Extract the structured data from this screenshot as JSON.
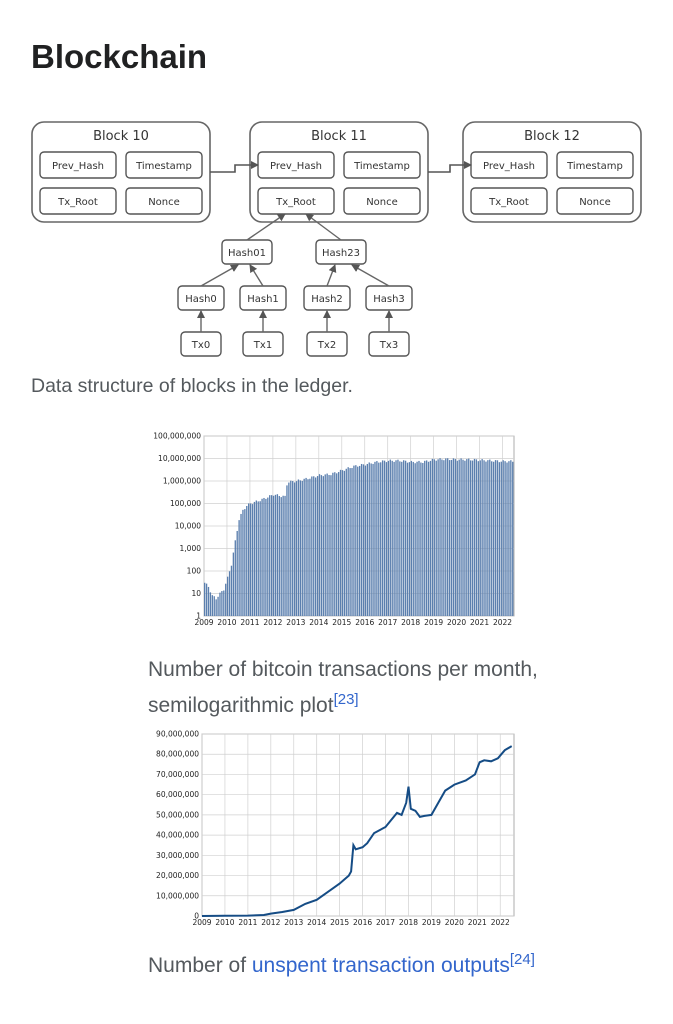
{
  "page": {
    "heading": "Blockchain"
  },
  "diagram": {
    "blocks": [
      {
        "title": "Block 10",
        "fields": [
          "Prev_Hash",
          "Timestamp",
          "Tx_Root",
          "Nonce"
        ]
      },
      {
        "title": "Block 11",
        "fields": [
          "Prev_Hash",
          "Timestamp",
          "Tx_Root",
          "Nonce"
        ]
      },
      {
        "title": "Block 12",
        "fields": [
          "Prev_Hash",
          "Timestamp",
          "Tx_Root",
          "Nonce"
        ]
      }
    ],
    "hash_pairs": [
      "Hash01",
      "Hash23"
    ],
    "hashes": [
      "Hash0",
      "Hash1",
      "Hash2",
      "Hash3"
    ],
    "transactions": [
      "Tx0",
      "Tx1",
      "Tx2",
      "Tx3"
    ],
    "caption": "Data structure of blocks in the ledger."
  },
  "figures": {
    "transactions": {
      "caption": "Number of bitcoin transactions per month, semilogarithmic plot",
      "ref": "[23]"
    },
    "utxo": {
      "caption_prefix": "Number of ",
      "caption_link": "unspent transaction outputs",
      "ref": "[24]"
    }
  },
  "chart_data": [
    {
      "type": "bar",
      "title": "",
      "xlabel": "",
      "ylabel": "",
      "yscale": "log",
      "ylim": [
        1,
        100000000
      ],
      "y_ticks": [
        "1",
        "10",
        "100",
        "1,000",
        "10,000",
        "100,000",
        "1,000,000",
        "10,000,000",
        "100,000,000"
      ],
      "x_ticks": [
        "2009",
        "2010",
        "2011",
        "2012",
        "2013",
        "2014",
        "2015",
        "2016",
        "2017",
        "2018",
        "2019",
        "2020",
        "2021",
        "2022"
      ],
      "grid": true,
      "color": "#5b7fae",
      "series": [
        {
          "x": [
            2009.0,
            2009.17,
            2009.33,
            2009.5,
            2009.67,
            2009.83,
            2010.0,
            2010.17,
            2010.33,
            2010.5,
            2010.67,
            2010.83,
            2011.0,
            2011.5,
            2012.0,
            2012.5,
            2012.6,
            2013.0,
            2013.5,
            2014.0,
            2014.5,
            2015.0,
            2015.5,
            2016.0,
            2016.5,
            2017.0,
            2017.5,
            2018.0,
            2018.5,
            2019.0,
            2019.5,
            2020.0,
            2020.5,
            2021.0,
            2021.5,
            2022.0,
            2022.5
          ],
          "values": [
            30,
            20,
            8,
            6,
            10,
            15,
            50,
            200,
            2000,
            20000,
            50000,
            80000,
            100000,
            150000,
            250000,
            200000,
            900000,
            1000000,
            1300000,
            1800000,
            2000000,
            3000000,
            4500000,
            5500000,
            7000000,
            8000000,
            8000000,
            7000000,
            7000000,
            9000000,
            9500000,
            9000000,
            9000000,
            8500000,
            8000000,
            7500000,
            7500000
          ]
        }
      ]
    },
    {
      "type": "line",
      "title": "",
      "xlabel": "",
      "ylabel": "",
      "ylim": [
        0,
        90000000
      ],
      "y_ticks": [
        "0",
        "10,000,000",
        "20,000,000",
        "30,000,000",
        "40,000,000",
        "50,000,000",
        "60,000,000",
        "70,000,000",
        "80,000,000",
        "90,000,000"
      ],
      "x_ticks": [
        "2009",
        "2010",
        "2011",
        "2012",
        "2013",
        "2014",
        "2015",
        "2016",
        "2017",
        "2018",
        "2019",
        "2020",
        "2021",
        "2022"
      ],
      "grid": true,
      "color": "#154c85",
      "series": [
        {
          "x": [
            2009.0,
            2010.0,
            2011.0,
            2011.7,
            2012.0,
            2012.5,
            2013.0,
            2013.5,
            2014.0,
            2014.5,
            2015.0,
            2015.4,
            2015.5,
            2015.6,
            2015.7,
            2016.0,
            2016.2,
            2016.5,
            2017.0,
            2017.5,
            2017.7,
            2017.9,
            2018.0,
            2018.1,
            2018.3,
            2018.5,
            2018.7,
            2019.0,
            2019.3,
            2019.6,
            2020.0,
            2020.5,
            2020.9,
            2021.1,
            2021.3,
            2021.6,
            2021.9,
            2022.2,
            2022.5
          ],
          "values": [
            0,
            100000,
            200000,
            500000,
            1200000,
            2000000,
            3000000,
            6000000,
            8000000,
            12000000,
            16000000,
            20000000,
            22000000,
            35000000,
            33000000,
            34000000,
            36000000,
            41000000,
            44000000,
            51000000,
            50000000,
            56000000,
            64000000,
            53000000,
            52000000,
            49000000,
            49500000,
            50000000,
            56000000,
            62000000,
            65000000,
            67000000,
            70000000,
            76000000,
            77000000,
            76500000,
            78000000,
            82000000,
            84000000
          ]
        }
      ]
    }
  ]
}
